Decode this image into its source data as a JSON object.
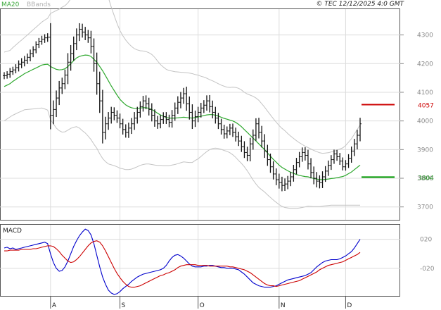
{
  "header": {
    "ma_label": "MA20",
    "bbands_label": "BBands",
    "copyright": "© TEC 12/12/2025 4:0 GMT"
  },
  "chart_data": [
    {
      "type": "line",
      "panel": "price",
      "ylim": [
        3655,
        4390
      ],
      "y_ticks": [
        {
          "label": "4300",
          "value": 4300
        },
        {
          "label": "4200",
          "value": 4200
        },
        {
          "label": "4100",
          "value": 4100
        },
        {
          "label": "4000",
          "value": 4000
        },
        {
          "label": "3900",
          "value": 3900
        },
        {
          "label": "3800",
          "value": 3800
        },
        {
          "label": "3700",
          "value": 3700
        }
      ],
      "x_ticks": [
        {
          "label": "A",
          "index": 16
        },
        {
          "label": "S",
          "index": 40
        },
        {
          "label": "O",
          "index": 67
        },
        {
          "label": "N",
          "index": 95
        },
        {
          "label": "D",
          "index": 118
        }
      ],
      "levels": [
        {
          "label": "4057",
          "value": 4057,
          "color": "#cc0000"
        },
        {
          "label": "3804",
          "value": 3804,
          "color": "#009900"
        }
      ],
      "closes": [
        4158,
        4163,
        4172,
        4178,
        4186,
        4198,
        4205,
        4212,
        4222,
        4235,
        4248,
        4266,
        4278,
        4285,
        4290,
        4292,
        4020,
        4040,
        4080,
        4115,
        4130,
        4160,
        4205,
        4235,
        4270,
        4300,
        4320,
        4310,
        4300,
        4290,
        4260,
        4200,
        4130,
        4070,
        3960,
        3990,
        4010,
        4030,
        4020,
        4010,
        3990,
        3970,
        3960,
        3975,
        3990,
        4010,
        4030,
        4050,
        4070,
        4060,
        4040,
        4020,
        4000,
        3990,
        4005,
        4015,
        4005,
        3995,
        4020,
        4045,
        4065,
        4080,
        4095,
        4060,
        4030,
        4000,
        4015,
        4030,
        4045,
        4055,
        4070,
        4050,
        4030,
        4010,
        3990,
        3970,
        3955,
        3965,
        3975,
        3960,
        3945,
        3930,
        3910,
        3890,
        3880,
        3920,
        3950,
        3990,
        3960,
        3930,
        3895,
        3865,
        3840,
        3815,
        3795,
        3785,
        3775,
        3780,
        3790,
        3805,
        3830,
        3855,
        3875,
        3890,
        3880,
        3850,
        3820,
        3800,
        3790,
        3785,
        3805,
        3825,
        3845,
        3865,
        3885,
        3875,
        3860,
        3840,
        3850,
        3870,
        3895,
        3920,
        3950,
        3990
      ],
      "ranges": [
        35,
        30,
        36,
        32,
        34,
        38,
        40,
        42,
        38,
        40,
        36,
        34,
        33,
        35,
        36,
        40,
        140,
        90,
        75,
        70,
        60,
        55,
        90,
        85,
        70,
        65,
        60,
        55,
        52,
        50,
        70,
        80,
        110,
        120,
        110,
        70,
        60,
        55,
        50,
        48,
        45,
        50,
        52,
        55,
        58,
        60,
        55,
        52,
        50,
        55,
        60,
        62,
        58,
        50,
        45,
        44,
        45,
        48,
        52,
        55,
        60,
        60,
        58,
        70,
        72,
        80,
        60,
        55,
        52,
        50,
        55,
        58,
        60,
        55,
        52,
        50,
        48,
        45,
        42,
        45,
        48,
        50,
        52,
        55,
        58,
        60,
        58,
        55,
        60,
        65,
        68,
        62,
        60,
        55,
        55,
        60,
        58,
        55,
        52,
        50,
        48,
        46,
        48,
        50,
        52,
        55,
        58,
        60,
        62,
        58,
        55,
        50,
        48,
        45,
        42,
        40,
        38,
        36,
        38,
        40,
        45,
        50,
        55,
        60
      ],
      "ma20": [
        4120,
        4125,
        4130,
        4138,
        4145,
        4152,
        4158,
        4165,
        4170,
        4175,
        4180,
        4185,
        4190,
        4195,
        4197,
        4198,
        4190,
        4185,
        4180,
        4178,
        4179,
        4182,
        4190,
        4200,
        4210,
        4220,
        4225,
        4228,
        4230,
        4229,
        4225,
        4215,
        4205,
        4190,
        4175,
        4158,
        4140,
        4122,
        4106,
        4090,
        4075,
        4065,
        4056,
        4050,
        4046,
        4044,
        4044,
        4045,
        4046,
        4046,
        4044,
        4040,
        4034,
        4027,
        4021,
        4016,
        4012,
        4010,
        4010,
        4010,
        4011,
        4012,
        4013,
        4012,
        4011,
        4010,
        4012,
        4014,
        4016,
        4019,
        4021,
        4022,
        4022,
        4020,
        4017,
        4013,
        4009,
        4006,
        4003,
        4000,
        3995,
        3988,
        3980,
        3970,
        3960,
        3950,
        3940,
        3930,
        3920,
        3910,
        3900,
        3888,
        3877,
        3866,
        3856,
        3846,
        3838,
        3832,
        3826,
        3821,
        3817,
        3813,
        3810,
        3808,
        3806,
        3805,
        3802,
        3799,
        3797,
        3795,
        3795,
        3796,
        3797,
        3799,
        3800,
        3802,
        3804,
        3806,
        3810,
        3816,
        3822,
        3830,
        3838,
        3846
      ],
      "bband_width": [
        120,
        118,
        116,
        118,
        120,
        122,
        124,
        126,
        130,
        134,
        138,
        142,
        146,
        150,
        155,
        160,
        185,
        195,
        205,
        212,
        218,
        220,
        222,
        226,
        232,
        240,
        250,
        262,
        272,
        282,
        290,
        296,
        300,
        305,
        306,
        300,
        290,
        275,
        262,
        250,
        240,
        232,
        226,
        220,
        214,
        208,
        204,
        200,
        198,
        196,
        194,
        192,
        188,
        182,
        176,
        172,
        168,
        166,
        164,
        162,
        160,
        158,
        156,
        156,
        156,
        155,
        150,
        146,
        140,
        134,
        128,
        122,
        118,
        115,
        113,
        112,
        112,
        112,
        114,
        118,
        122,
        126,
        128,
        130,
        134,
        140,
        146,
        150,
        152,
        150,
        148,
        146,
        144,
        142,
        140,
        138,
        136,
        134,
        130,
        126,
        122,
        118,
        114,
        110,
        106,
        102,
        100,
        98,
        96,
        94,
        92,
        92,
        92,
        93,
        94,
        96,
        98,
        100,
        104,
        110,
        116,
        124,
        132,
        140
      ]
    },
    {
      "type": "line",
      "panel": "macd",
      "title": "MACD",
      "ylim": [
        -58,
        40
      ],
      "y_ticks": [
        {
          "label": "020",
          "value": 20
        },
        {
          "label": "-020",
          "value": -20
        }
      ],
      "series": [
        {
          "name": "MACD",
          "color": "#0000cc",
          "values": [
            8,
            9,
            7,
            8,
            6,
            7,
            8,
            9,
            10,
            11,
            12,
            13,
            14,
            15,
            16,
            14,
            0,
            -12,
            -20,
            -24,
            -23,
            -18,
            -10,
            0,
            10,
            18,
            25,
            30,
            34,
            32,
            26,
            14,
            -2,
            -18,
            -32,
            -42,
            -50,
            -54,
            -56,
            -55,
            -52,
            -48,
            -45,
            -42,
            -38,
            -35,
            -32,
            -30,
            -28,
            -27,
            -26,
            -25,
            -24,
            -23,
            -22,
            -20,
            -16,
            -10,
            -5,
            -2,
            -1,
            -3,
            -6,
            -10,
            -14,
            -17,
            -18,
            -18,
            -18,
            -17,
            -17,
            -16,
            -16,
            -17,
            -18,
            -19,
            -19,
            -20,
            -20,
            -20,
            -21,
            -22,
            -25,
            -28,
            -32,
            -36,
            -40,
            -42,
            -44,
            -45,
            -46,
            -46,
            -46,
            -45,
            -44,
            -42,
            -40,
            -38,
            -36,
            -35,
            -34,
            -33,
            -32,
            -31,
            -30,
            -28,
            -26,
            -22,
            -18,
            -15,
            -12,
            -10,
            -9,
            -8,
            -8,
            -8,
            -7,
            -5,
            -3,
            0,
            3,
            8,
            14,
            20
          ]
        },
        {
          "name": "Signal",
          "color": "#cc0000",
          "values": [
            4,
            4,
            5,
            5,
            5,
            5,
            6,
            6,
            6,
            6,
            7,
            7,
            8,
            9,
            10,
            11,
            11,
            10,
            7,
            3,
            -2,
            -6,
            -10,
            -12,
            -11,
            -8,
            -4,
            1,
            6,
            11,
            15,
            17,
            18,
            16,
            11,
            4,
            -4,
            -12,
            -20,
            -27,
            -33,
            -38,
            -42,
            -45,
            -46,
            -46,
            -45,
            -44,
            -42,
            -40,
            -38,
            -36,
            -34,
            -32,
            -30,
            -29,
            -27,
            -26,
            -24,
            -22,
            -19,
            -17,
            -16,
            -15,
            -15,
            -15,
            -15,
            -16,
            -16,
            -16,
            -16,
            -17,
            -17,
            -17,
            -17,
            -17,
            -17,
            -17,
            -18,
            -18,
            -19,
            -20,
            -21,
            -22,
            -24,
            -26,
            -29,
            -32,
            -35,
            -38,
            -41,
            -43,
            -44,
            -44,
            -45,
            -44,
            -43,
            -42,
            -41,
            -40,
            -39,
            -38,
            -37,
            -35,
            -33,
            -31,
            -29,
            -27,
            -25,
            -22,
            -20,
            -18,
            -16,
            -15,
            -14,
            -13,
            -12,
            -11,
            -9,
            -7,
            -5,
            -3,
            -1,
            2
          ]
        }
      ]
    }
  ]
}
